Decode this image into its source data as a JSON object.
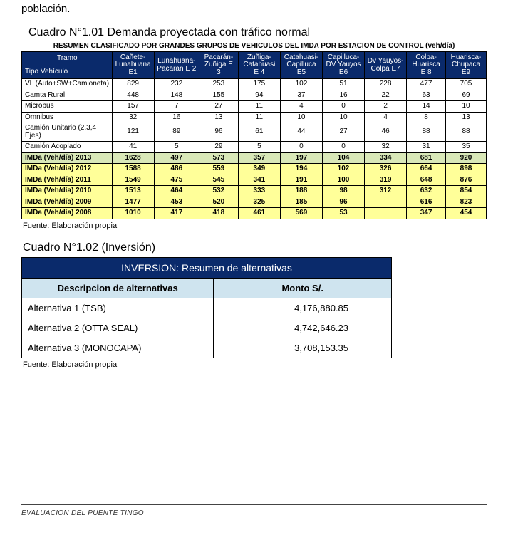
{
  "pre_text": "población.",
  "cuadro1": {
    "title": "Cuadro N°1.01 Demanda proyectada con tráfico normal",
    "resumen": "RESUMEN  CLASIFICADO POR GRANDES GRUPOS DE VEHICULOS DEL  IMDA POR ESTACION DE CONTROL (veh/día)",
    "col_first_top": "Tramo",
    "col_first_bottom": "Tipo Vehículo",
    "columns": [
      "Cañete- Lunahuana E1",
      "Lunahuana- Pacaran E 2",
      "Pacarán- Zuñiga E 3",
      "Zuñiga- Catahuasi E 4",
      "Catahuasi- Capilluca E5",
      "Capilluca- DV Yauyos E6",
      "Dv Yauyos- Colpa E7",
      "Colpa- Huarisca E 8",
      "Huarisca- Chupaca E9"
    ],
    "rows": [
      {
        "type": "white",
        "label": "VL (Auto+SW+Camioneta)",
        "v": [
          "829",
          "232",
          "253",
          "175",
          "102",
          "51",
          "228",
          "477",
          "705"
        ]
      },
      {
        "type": "white",
        "label": "Camta Rural",
        "v": [
          "448",
          "148",
          "155",
          "94",
          "37",
          "16",
          "22",
          "63",
          "69"
        ]
      },
      {
        "type": "white",
        "label": "Microbus",
        "v": [
          "157",
          "7",
          "27",
          "11",
          "4",
          "0",
          "2",
          "14",
          "10"
        ]
      },
      {
        "type": "white",
        "label": "Ómnibus",
        "v": [
          "32",
          "16",
          "13",
          "11",
          "10",
          "10",
          "4",
          "8",
          "13"
        ]
      },
      {
        "type": "white",
        "label": "Camión Unitario (2,3,4 Ejes)",
        "v": [
          "121",
          "89",
          "96",
          "61",
          "44",
          "27",
          "46",
          "88",
          "88"
        ]
      },
      {
        "type": "white",
        "label": "Camión Acoplado",
        "v": [
          "41",
          "5",
          "29",
          "5",
          "0",
          "0",
          "32",
          "31",
          "35"
        ]
      },
      {
        "type": "greenish",
        "label": "IMDa (Veh/día) 2013",
        "v": [
          "1628",
          "497",
          "573",
          "357",
          "197",
          "104",
          "334",
          "681",
          "920"
        ]
      },
      {
        "type": "yellow",
        "label": "IMDa (Veh/día) 2012",
        "v": [
          "1588",
          "486",
          "559",
          "349",
          "194",
          "102",
          "326",
          "664",
          "898"
        ]
      },
      {
        "type": "yellow",
        "label": "IMDa (Veh/día) 2011",
        "v": [
          "1549",
          "475",
          "545",
          "341",
          "191",
          "100",
          "319",
          "648",
          "876"
        ]
      },
      {
        "type": "yellow",
        "label": "IMDa (Veh/día) 2010",
        "v": [
          "1513",
          "464",
          "532",
          "333",
          "188",
          "98",
          "312",
          "632",
          "854"
        ]
      },
      {
        "type": "yellow",
        "label": "IMDa (Veh/día) 2009",
        "v": [
          "1477",
          "453",
          "520",
          "325",
          "185",
          "96",
          "",
          "616",
          "823"
        ]
      },
      {
        "type": "yellow",
        "label": "IMDa (Veh/día) 2008",
        "v": [
          "1010",
          "417",
          "418",
          "461",
          "569",
          "53",
          "",
          "347",
          "454"
        ]
      }
    ],
    "fuente": "Fuente: Elaboración propia"
  },
  "cuadro2": {
    "title": "Cuadro N°1.02 (Inversión)",
    "banner": "INVERSION: Resumen de alternativas",
    "col_desc": "Descripcion de alternativas",
    "col_monto": "Monto S/.",
    "rows": [
      {
        "desc": "Alternativa 1 (TSB)",
        "monto": "4,176,880.85"
      },
      {
        "desc": "Alternativa 2 (OTTA SEAL)",
        "monto": "4,742,646.23"
      },
      {
        "desc": "Alternativa 3 (MONOCAPA)",
        "monto": "3,708,153.35"
      }
    ],
    "fuente": "Fuente: Elaboración propia"
  },
  "footer": "EVALUACION DEL PUENTE TINGO"
}
